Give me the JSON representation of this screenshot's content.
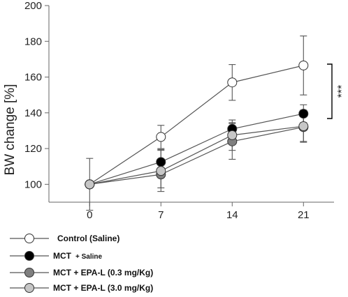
{
  "chart_data": {
    "type": "line",
    "ylabel": "BW change [%]",
    "xlabel": "",
    "x": [
      0,
      7,
      14,
      21
    ],
    "x_ticks": [
      "0",
      "7",
      "14",
      "21"
    ],
    "y_ticks": [
      "100",
      "120",
      "140",
      "160",
      "180",
      "200"
    ],
    "ylim": [
      90,
      200
    ],
    "xlim": [
      -4,
      24
    ],
    "grid": false,
    "legend_placement": "bottom",
    "significance": "***",
    "series": [
      {
        "name": "Control (Saline)",
        "values": [
          100,
          126.5,
          157,
          166.5
        ],
        "errors": [
          14.5,
          6.5,
          10,
          16.5
        ],
        "fill": "#ffffff"
      },
      {
        "name": "MCT",
        "name_suffix": "+ Saline",
        "values": [
          100,
          112.5,
          131,
          139.5
        ],
        "errors": [
          0,
          7,
          3.5,
          5
        ],
        "fill": "#000000"
      },
      {
        "name": "MCT + EPA-L (0.3 mg/Kg)",
        "values": [
          100,
          105.5,
          124,
          132
        ],
        "errors": [
          0,
          7.5,
          10,
          8
        ],
        "fill": "#7f7f7f"
      },
      {
        "name": "MCT + EPA-L (3.0 mg/Kg)",
        "values": [
          100,
          107.5,
          127.5,
          132.5
        ],
        "errors": [
          0,
          11.5,
          8.5,
          9
        ],
        "fill": "#c6c6c6"
      }
    ]
  }
}
